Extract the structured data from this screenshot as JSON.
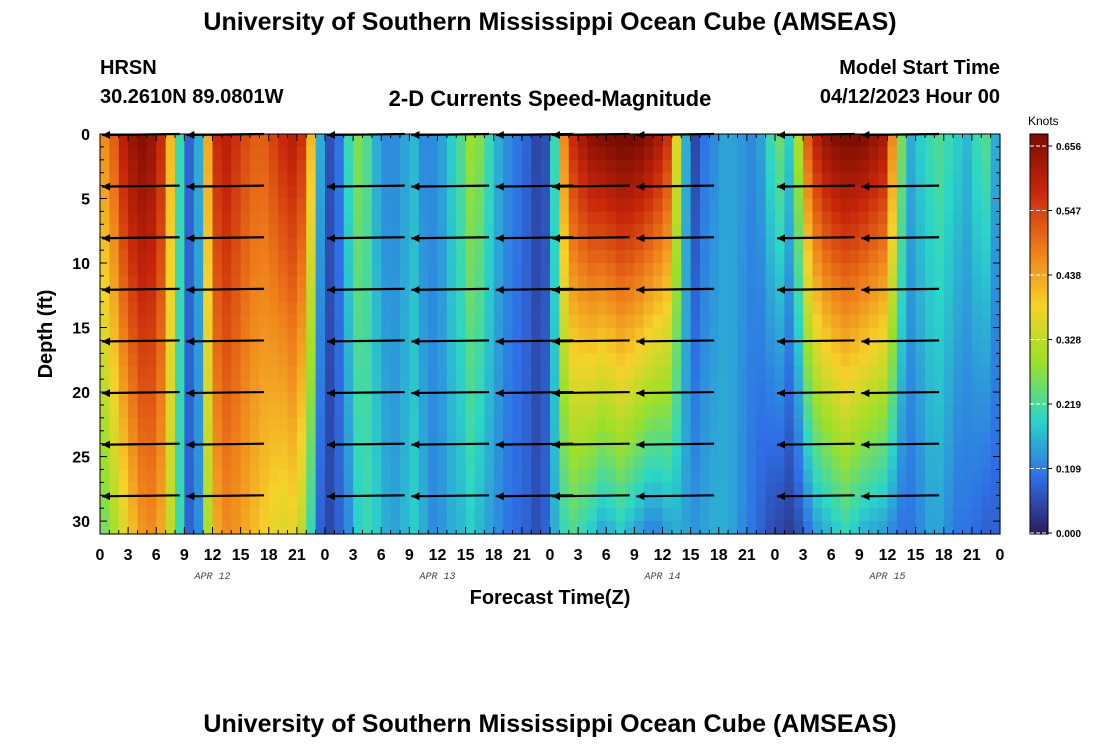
{
  "header": {
    "title": "University of Southern Mississippi Ocean Cube (AMSEAS)",
    "station": "HRSN",
    "coords": "30.2610N  89.0801W",
    "subtitle": "2-D Currents Speed-Magnitude",
    "model_start_label": "Model Start Time",
    "model_start": "04/12/2023 Hour 00"
  },
  "footer": {
    "title": "University of Southern Mississippi Ocean Cube (AMSEAS)"
  },
  "chart_data": {
    "type": "heatmap",
    "title": "2-D Currents Speed-Magnitude",
    "xlabel": "Forecast Time(Z)",
    "ylabel": "Depth (ft)",
    "x_tick_labels": [
      "0",
      "3",
      "6",
      "9",
      "12",
      "15",
      "18",
      "21",
      "0",
      "3",
      "6",
      "9",
      "12",
      "15",
      "18",
      "21",
      "0",
      "3",
      "6",
      "9",
      "12",
      "15",
      "18",
      "21",
      "0",
      "3",
      "6",
      "9",
      "12",
      "15",
      "18",
      "21",
      "0"
    ],
    "date_labels": [
      "APR 12",
      "APR 13",
      "APR 14",
      "APR 15"
    ],
    "y_ticks": [
      0,
      5,
      10,
      15,
      20,
      25,
      30
    ],
    "ylim": [
      0,
      31
    ],
    "x_range_hours": [
      0,
      96
    ],
    "colorbar": {
      "label": "Knots",
      "ticks": [
        "0.656",
        "0.547",
        "0.438",
        "0.328",
        "0.219",
        "0.109",
        "0.000"
      ],
      "range": [
        0,
        0.656
      ],
      "colors": [
        "#2c1b5e",
        "#2f6fe6",
        "#2bd6c8",
        "#9be02a",
        "#f6d22a",
        "#ee7a1a",
        "#c8260a",
        "#7a0c02"
      ]
    },
    "vector_depths_ft": [
      0,
      4,
      8,
      12,
      16,
      20,
      24,
      28
    ],
    "vector_color": "#000000",
    "speed_profile": {
      "hours": [
        0,
        1,
        2,
        3,
        4,
        5,
        6,
        7,
        8,
        9,
        10,
        11,
        12,
        13,
        14,
        15,
        16,
        17,
        18,
        19,
        20,
        21,
        22,
        23,
        24,
        25,
        26,
        27,
        28,
        29,
        30,
        31,
        32,
        33,
        34,
        35,
        36,
        37,
        38,
        39,
        40,
        41,
        42,
        43,
        44,
        45,
        46,
        47,
        48,
        49,
        50,
        51,
        52,
        53,
        54,
        55,
        56,
        57,
        58,
        59,
        60,
        61,
        62,
        63,
        64,
        65,
        66,
        67,
        68,
        69,
        70,
        71,
        72,
        73,
        74,
        75,
        76,
        77,
        78,
        79,
        80,
        81,
        82,
        83,
        84,
        85,
        86,
        87,
        88,
        89,
        90,
        91,
        92,
        93,
        94,
        95,
        96
      ],
      "speed_top": [
        0.45,
        0.5,
        0.58,
        0.62,
        0.64,
        0.62,
        0.56,
        0.4,
        0.2,
        0.08,
        0.15,
        0.42,
        0.56,
        0.58,
        0.55,
        0.52,
        0.5,
        0.5,
        0.53,
        0.56,
        0.58,
        0.55,
        0.4,
        0.15,
        0.06,
        0.1,
        0.2,
        0.26,
        0.22,
        0.15,
        0.12,
        0.12,
        0.14,
        0.16,
        0.12,
        0.12,
        0.14,
        0.18,
        0.22,
        0.28,
        0.26,
        0.2,
        0.15,
        0.12,
        0.1,
        0.08,
        0.05,
        0.06,
        0.2,
        0.45,
        0.56,
        0.6,
        0.63,
        0.64,
        0.65,
        0.66,
        0.66,
        0.65,
        0.63,
        0.6,
        0.55,
        0.35,
        0.15,
        0.05,
        0.1,
        0.12,
        0.14,
        0.14,
        0.13,
        0.12,
        0.14,
        0.2,
        0.24,
        0.18,
        0.3,
        0.5,
        0.58,
        0.62,
        0.64,
        0.65,
        0.65,
        0.64,
        0.62,
        0.6,
        0.45,
        0.25,
        0.15,
        0.18,
        0.2,
        0.22,
        0.2,
        0.18,
        0.16,
        0.2,
        0.22,
        0.15,
        0.1
      ],
      "speed_bottom": [
        0.25,
        0.3,
        0.35,
        0.4,
        0.44,
        0.45,
        0.42,
        0.32,
        0.2,
        0.08,
        0.12,
        0.3,
        0.42,
        0.45,
        0.44,
        0.42,
        0.4,
        0.38,
        0.36,
        0.35,
        0.36,
        0.32,
        0.2,
        0.08,
        0.05,
        0.08,
        0.12,
        0.18,
        0.2,
        0.18,
        0.15,
        0.14,
        0.16,
        0.18,
        0.15,
        0.12,
        0.13,
        0.15,
        0.16,
        0.18,
        0.16,
        0.14,
        0.12,
        0.1,
        0.09,
        0.08,
        0.06,
        0.08,
        0.15,
        0.2,
        0.22,
        0.2,
        0.18,
        0.15,
        0.16,
        0.18,
        0.16,
        0.14,
        0.12,
        0.12,
        0.14,
        0.15,
        0.14,
        0.13,
        0.14,
        0.15,
        0.15,
        0.14,
        0.12,
        0.1,
        0.08,
        0.06,
        0.05,
        0.04,
        0.06,
        0.1,
        0.14,
        0.16,
        0.18,
        0.2,
        0.18,
        0.16,
        0.15,
        0.14,
        0.12,
        0.1,
        0.1,
        0.12,
        0.14,
        0.14,
        0.12,
        0.1,
        0.1,
        0.09,
        0.08,
        0.08,
        0.07
      ]
    }
  }
}
